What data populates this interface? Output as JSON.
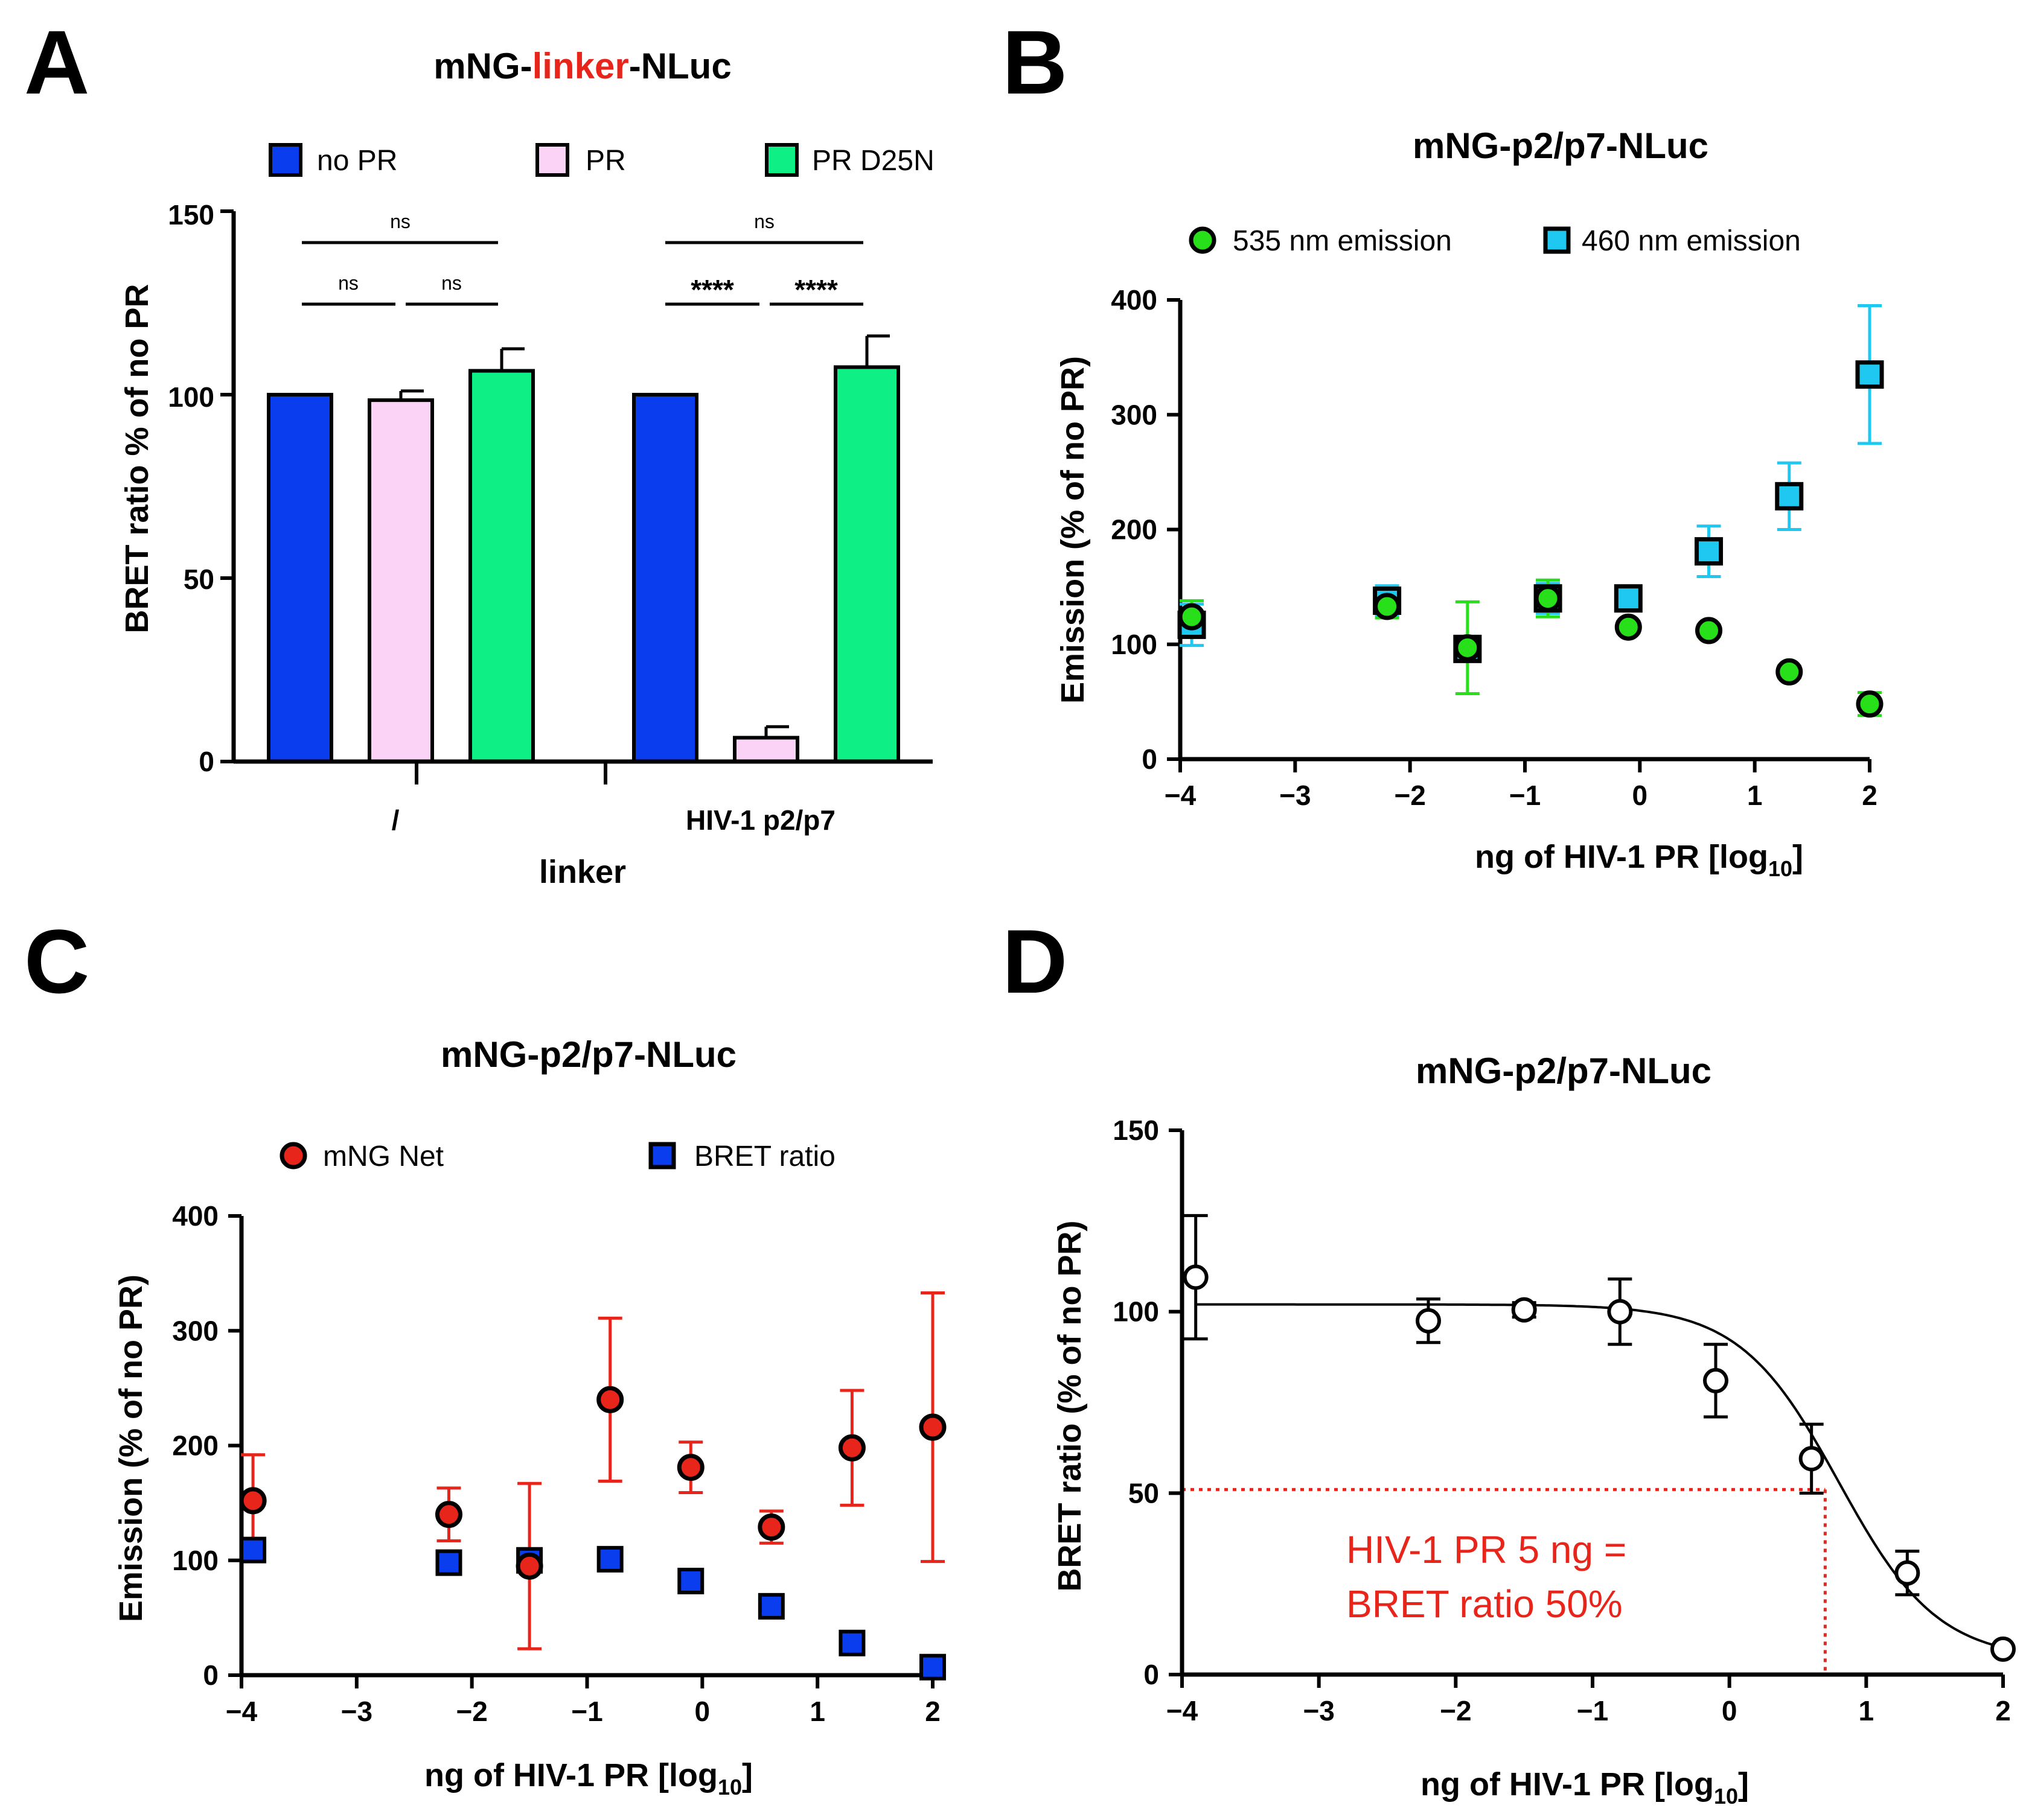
{
  "colors": {
    "no_pr": "#0a3dee",
    "pr": "#fbd3f6",
    "pr_d25n": "#0ef085",
    "linker_red": "#e8251b",
    "em535": "#27e01a",
    "em460": "#1ec8f0",
    "mng_net": "#e8251b",
    "bret": "#0a3dee",
    "annotation": "#e8251b"
  },
  "panels": {
    "A": {
      "letter": "A",
      "title_pre": "mNG-",
      "title_mid": "linker",
      "title_post": "-NLuc",
      "legend": [
        "no PR",
        "PR",
        "PR D25N"
      ],
      "ylabel": "BRET ratio % of no PR",
      "xlabel": "linker",
      "yticks": [
        "0",
        "50",
        "100",
        "150"
      ],
      "group_labels": [
        "/",
        "HIV-1 p2/p7"
      ],
      "significance": [
        "ns",
        "ns",
        "ns",
        "ns",
        "****",
        "****"
      ]
    },
    "B": {
      "letter": "B",
      "title": "mNG-p2/p7-NLuc",
      "ylabel": "Emission (% of no PR)",
      "xlabel": "ng of HIV-1 PR [log",
      "xlabel_sub": "10",
      "xlabel_end": "]",
      "legend": [
        "535 nm emission",
        "460 nm emission"
      ],
      "yticks": [
        "0",
        "100",
        "200",
        "300",
        "400"
      ],
      "xticks": [
        "−4",
        "−3",
        "−2",
        "−1",
        "0",
        "1",
        "2"
      ]
    },
    "C": {
      "letter": "C",
      "title": "mNG-p2/p7-NLuc",
      "ylabel": "Emission (% of no PR)",
      "xlabel": "ng of HIV-1 PR [log",
      "xlabel_sub": "10",
      "xlabel_end": "]",
      "legend": [
        "mNG Net",
        "BRET ratio"
      ],
      "yticks": [
        "0",
        "100",
        "200",
        "300",
        "400"
      ],
      "xticks": [
        "−4",
        "−3",
        "−2",
        "−1",
        "0",
        "1",
        "2"
      ]
    },
    "D": {
      "letter": "D",
      "title": "mNG-p2/p7-NLuc",
      "ylabel": "BRET ratio (% of no PR)",
      "xlabel": "ng of HIV-1 PR [log",
      "xlabel_sub": "10",
      "xlabel_end": "]",
      "yticks": [
        "0",
        "50",
        "100",
        "150"
      ],
      "xticks": [
        "−4",
        "−3",
        "−2",
        "−1",
        "0",
        "1",
        "2"
      ],
      "annotation_line1": "HIV-1 PR 5 ng =",
      "annotation_line2": "BRET ratio 50%"
    }
  },
  "chart_data": [
    {
      "panel": "A",
      "type": "bar",
      "title": "mNG-linker-NLuc",
      "xlabel": "linker",
      "ylabel": "BRET ratio % of no PR",
      "categories": [
        "/",
        "HIV-1 p2/p7"
      ],
      "ylim": [
        0,
        150
      ],
      "legend_position": "top",
      "series": [
        {
          "name": "no PR",
          "values": [
            100,
            100
          ],
          "errors": [
            0,
            0
          ]
        },
        {
          "name": "PR",
          "values": [
            98.5,
            6.5
          ],
          "errors": [
            2.5,
            3
          ]
        },
        {
          "name": "PR D25N",
          "values": [
            106.5,
            107.5
          ],
          "errors": [
            6,
            8.5
          ]
        }
      ],
      "comparisons": [
        {
          "group": "/",
          "pair": [
            "no PR",
            "PR"
          ],
          "label": "ns"
        },
        {
          "group": "/",
          "pair": [
            "PR",
            "PR D25N"
          ],
          "label": "ns"
        },
        {
          "group": "/",
          "pair": [
            "no PR",
            "PR D25N"
          ],
          "label": "ns"
        },
        {
          "group": "HIV-1 p2/p7",
          "pair": [
            "no PR",
            "PR"
          ],
          "label": "****"
        },
        {
          "group": "HIV-1 p2/p7",
          "pair": [
            "PR",
            "PR D25N"
          ],
          "label": "****"
        },
        {
          "group": "HIV-1 p2/p7",
          "pair": [
            "no PR",
            "PR D25N"
          ],
          "label": "ns"
        }
      ]
    },
    {
      "panel": "B",
      "type": "scatter",
      "title": "mNG-p2/p7-NLuc",
      "xlabel": "ng of HIV-1 PR [log10]",
      "ylabel": "Emission (% of no PR)",
      "xlim": [
        -4,
        2
      ],
      "ylim": [
        0,
        400
      ],
      "legend_position": "top",
      "series": [
        {
          "name": "535 nm emission",
          "marker": "circle",
          "x": [
            -3.9,
            -2.2,
            -1.5,
            -0.8,
            -0.1,
            0.6,
            1.3,
            2.0
          ],
          "y": [
            124,
            133,
            97,
            140,
            115,
            112,
            76,
            48
          ],
          "err": [
            14,
            10,
            40,
            16,
            5,
            5,
            5,
            10
          ]
        },
        {
          "name": "460 nm emission",
          "marker": "square",
          "x": [
            -3.9,
            -2.2,
            -1.5,
            -0.8,
            -0.1,
            0.6,
            1.3,
            2.0
          ],
          "y": [
            117,
            138,
            96,
            140,
            140,
            181,
            229,
            335
          ],
          "err": [
            18,
            13,
            5,
            13,
            5,
            22,
            29,
            60
          ]
        }
      ]
    },
    {
      "panel": "C",
      "type": "scatter",
      "title": "mNG-p2/p7-NLuc",
      "xlabel": "ng of HIV-1 PR [log10]",
      "ylabel": "Emission (% of no PR)",
      "xlim": [
        -4,
        2
      ],
      "ylim": [
        0,
        400
      ],
      "legend_position": "top",
      "series": [
        {
          "name": "mNG Net",
          "marker": "circle",
          "x": [
            -3.9,
            -2.2,
            -1.5,
            -0.8,
            -0.1,
            0.6,
            1.3,
            2.0
          ],
          "y": [
            152,
            140,
            95,
            240,
            181,
            129,
            198,
            216
          ],
          "err": [
            40,
            23,
            72,
            71,
            22,
            14,
            50,
            117
          ]
        },
        {
          "name": "BRET ratio",
          "marker": "square",
          "x": [
            -3.9,
            -2.2,
            -1.5,
            -0.8,
            -0.1,
            0.6,
            1.3,
            2.0
          ],
          "y": [
            109,
            98,
            100,
            101,
            82,
            60,
            28,
            7
          ],
          "err": [
            0,
            0,
            0,
            0,
            0,
            0,
            0,
            0
          ]
        }
      ]
    },
    {
      "panel": "D",
      "type": "scatter",
      "title": "mNG-p2/p7-NLuc",
      "xlabel": "ng of HIV-1 PR [log10]",
      "ylabel": "BRET ratio (% of no PR)",
      "xlim": [
        -4,
        2
      ],
      "ylim": [
        0,
        150
      ],
      "series": [
        {
          "name": "",
          "marker": "open-circle",
          "x": [
            -3.9,
            -2.2,
            -1.5,
            -0.8,
            -0.1,
            0.6,
            1.3,
            2.0
          ],
          "y": [
            109.5,
            97.5,
            100.5,
            100,
            81,
            59.5,
            28,
            7
          ],
          "err": [
            17,
            6,
            2,
            9,
            10,
            9.5,
            6,
            0
          ]
        }
      ],
      "fit": {
        "model": "four-parameter logistic",
        "top": 102,
        "bottom": 4,
        "logIC50": 0.8,
        "hill": 1.2
      },
      "reference": {
        "x": 0.7,
        "y": 51,
        "label": [
          "HIV-1 PR 5 ng =",
          "BRET ratio 50%"
        ]
      }
    }
  ]
}
